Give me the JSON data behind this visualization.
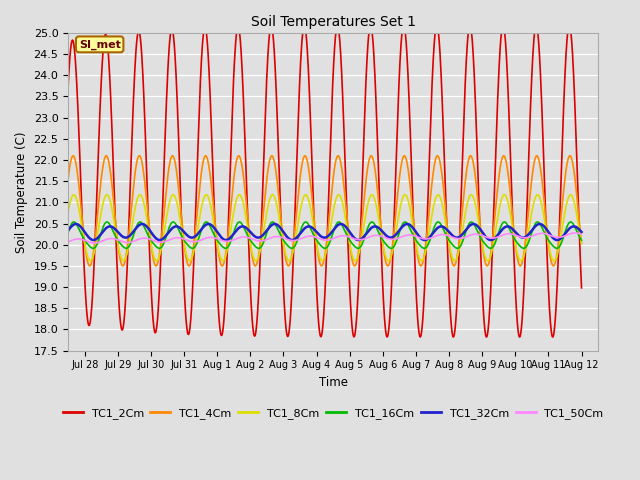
{
  "title": "Soil Temperatures Set 1",
  "xlabel": "Time",
  "ylabel": "Soil Temperature (C)",
  "ylim": [
    17.5,
    25.0
  ],
  "yticks": [
    17.5,
    18.0,
    18.5,
    19.0,
    19.5,
    20.0,
    20.5,
    21.0,
    21.5,
    22.0,
    22.5,
    23.0,
    23.5,
    24.0,
    24.5,
    25.0
  ],
  "bg_color": "#e0e0e0",
  "plot_bg_color": "#e0e0e0",
  "series": {
    "TC1_2Cm": {
      "color": "#dd0000",
      "lw": 1.2,
      "amp": 3.2,
      "mean": 21.5,
      "phase": 0.38,
      "lag_days": 0.0
    },
    "TC1_4Cm": {
      "color": "#ff8800",
      "lw": 1.2,
      "amp": 1.3,
      "mean": 20.8,
      "phase": 0.4,
      "lag_days": 0.05
    },
    "TC1_8Cm": {
      "color": "#dddd00",
      "lw": 1.2,
      "amp": 0.78,
      "mean": 20.4,
      "phase": 0.42,
      "lag_days": 0.1
    },
    "TC1_16Cm": {
      "color": "#00bb00",
      "lw": 1.2,
      "amp": 0.3,
      "mean": 20.2,
      "phase": 0.45,
      "lag_days": 0.18
    },
    "TC1_32Cm": {
      "color": "#2222cc",
      "lw": 1.8,
      "amp": 0.16,
      "mean": 20.3,
      "phase": 0.5,
      "lag_days": 0.28
    },
    "TC1_50Cm": {
      "color": "#ff88ff",
      "lw": 1.2,
      "amp": 0.05,
      "mean": 20.08,
      "phase": 0.55,
      "lag_days": 0.4
    }
  },
  "series_order": [
    "TC1_2Cm",
    "TC1_4Cm",
    "TC1_8Cm",
    "TC1_16Cm",
    "TC1_32Cm",
    "TC1_50Cm"
  ],
  "annotation_text": "SI_met",
  "annotation_bg": "#ffff99",
  "annotation_border": "#aa6600",
  "tick_dates": [
    "Jul 28",
    "Jul 29",
    "Jul 30",
    "Jul 31",
    "Aug 1",
    "Aug 2",
    "Aug 3",
    "Aug 4",
    "Aug 5",
    "Aug 6",
    "Aug 7",
    "Aug 8",
    "Aug 9",
    "Aug 10",
    "Aug 11",
    "Aug 12"
  ]
}
